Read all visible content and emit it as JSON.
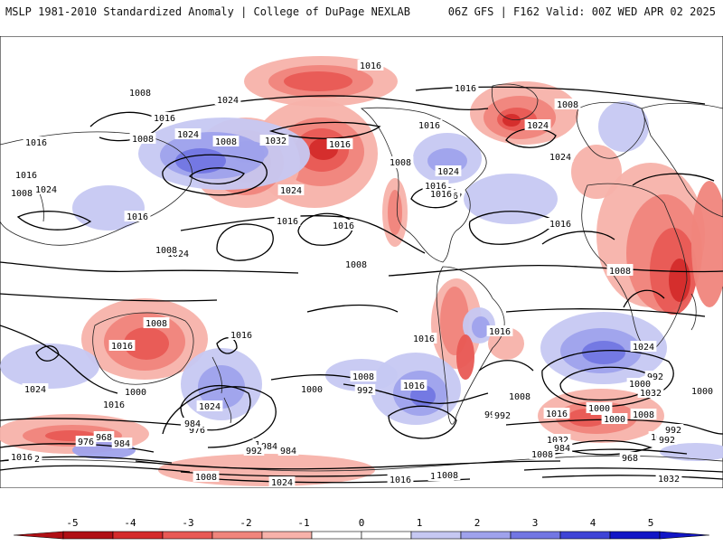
{
  "header": {
    "left_title": "MSLP 1981-2010 Standardized Anomaly | College of DuPage NEXLAB",
    "right_title": "06Z GFS | F162 Valid: 00Z WED APR 02 2025"
  },
  "colorbar": {
    "ticks": [
      "-5",
      "-4",
      "-3",
      "-2",
      "-1",
      "0",
      "1",
      "2",
      "3",
      "4",
      "5"
    ],
    "colors": [
      "#b01015",
      "#d42b2b",
      "#e85a55",
      "#f0857c",
      "#f7b2aa",
      "#ffffff",
      "#ffffff",
      "#c6c8f2",
      "#9fa2ec",
      "#7276e3",
      "#3f44d6",
      "#1216c6"
    ]
  },
  "map": {
    "anomaly_colors": {
      "pos1": "#f7b2aa",
      "pos2": "#f0857c",
      "pos3": "#e85a55",
      "pos4": "#d42b2b",
      "pos5": "#b01015",
      "neg1": "#c6c8f2",
      "neg2": "#9fa2ec",
      "neg3": "#7276e3",
      "neg4": "#3f44d6"
    },
    "isobar_labels": [
      "1016",
      "1008",
      "1024",
      "1016",
      "1016",
      "1008",
      "1008",
      "1016",
      "1016",
      "1024",
      "1008",
      "1016",
      "1024",
      "1032",
      "1008",
      "1016",
      "1024",
      "1008",
      "1016",
      "1024",
      "1016",
      "1016",
      "1016",
      "1008",
      "1024",
      "1016",
      "1024",
      "1008",
      "1016",
      "1016",
      "1008",
      "1008",
      "1016",
      "1016",
      "1016",
      "1016",
      "1024",
      "1016",
      "1008",
      "1024",
      "1008",
      "1016",
      "1008",
      "1024",
      "1000",
      "1008",
      "992",
      "1016",
      "1000",
      "992",
      "1016",
      "1000",
      "992",
      "984",
      "976",
      "1024",
      "992",
      "1032",
      "968",
      "984",
      "976",
      "984",
      "992",
      "1008",
      "1000",
      "1016",
      "984",
      "984",
      "992",
      "1000",
      "1008",
      "1016",
      "1032",
      "1016",
      "1008",
      "984",
      "968",
      "1000",
      "1032",
      "1008",
      "992",
      "1000",
      "1032",
      "1024",
      "992",
      "1016",
      "1024",
      "1008",
      "1008"
    ]
  }
}
